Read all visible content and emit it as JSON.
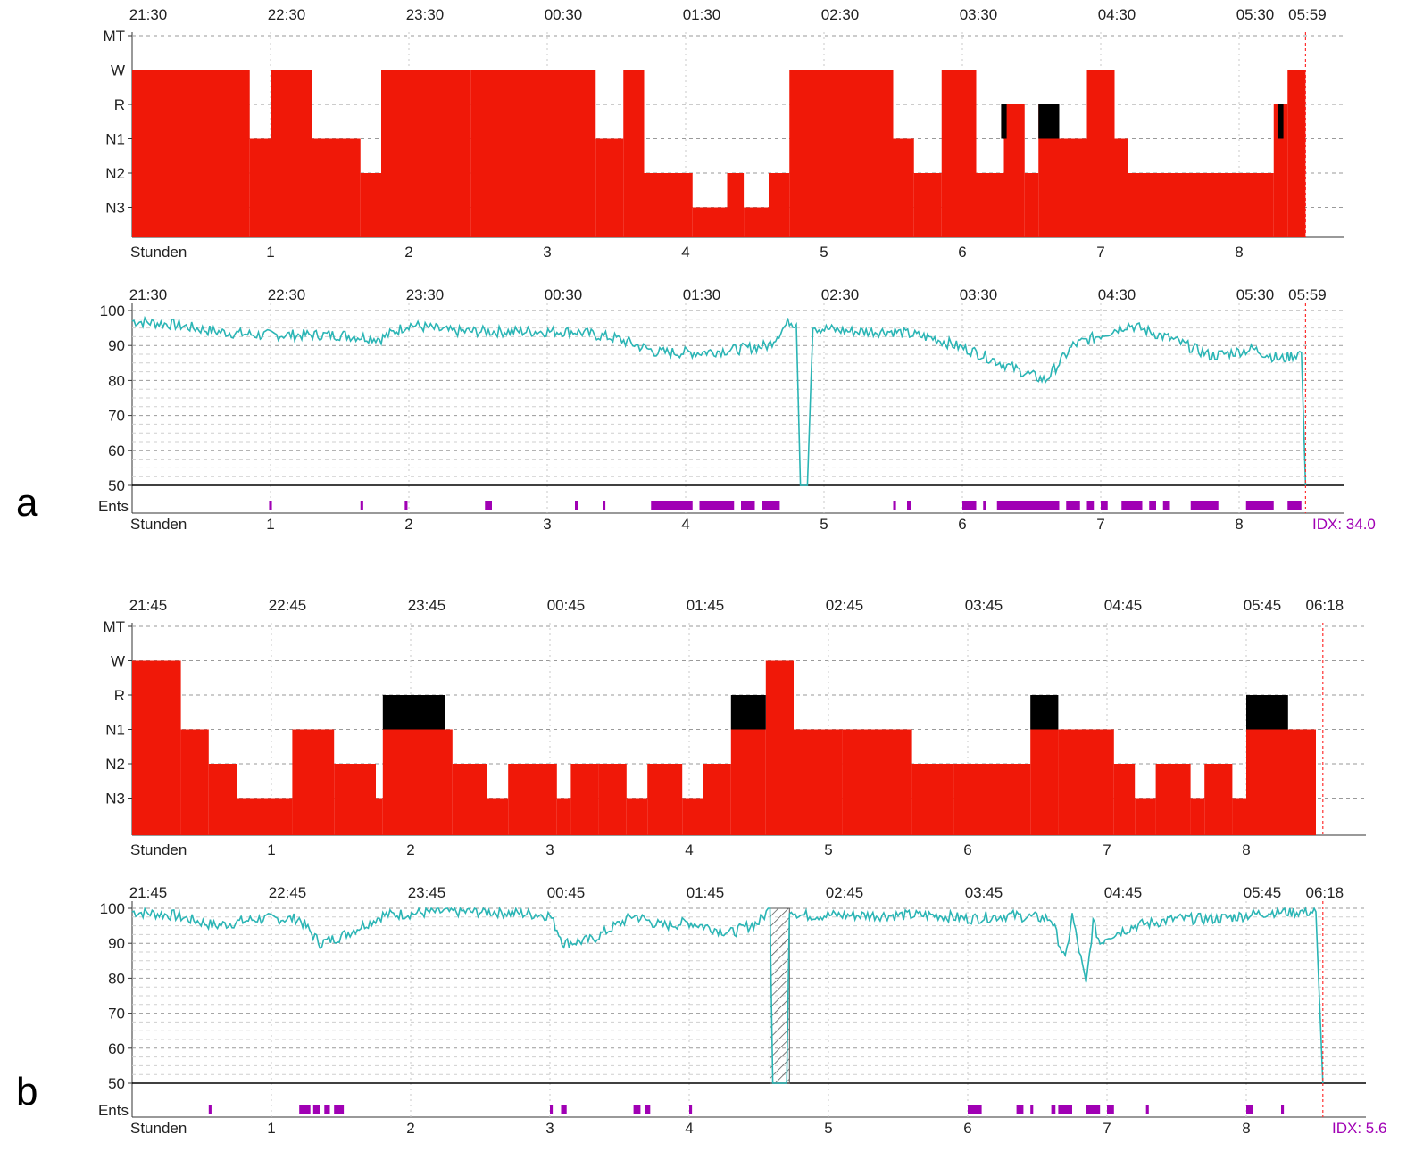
{
  "colors": {
    "hypnogram_fill": "#f01808",
    "rem_fill": "#000000",
    "spo2_line": "#2bb5b5",
    "events": "#a000b4",
    "end_marker": "#ff3030",
    "grid": "#9a9a9a",
    "idx_text": "#a000b4"
  },
  "panels": [
    {
      "label": "a",
      "times": [
        "21:30",
        "22:30",
        "23:30",
        "00:30",
        "01:30",
        "02:30",
        "03:30",
        "04:30",
        "05:30",
        "05:59"
      ],
      "hours_label": "Stunden",
      "hours": [
        "1",
        "2",
        "3",
        "4",
        "5",
        "6",
        "7",
        "8"
      ],
      "idx_label": "IDX: 34.0",
      "events_label": "Ents"
    },
    {
      "label": "b",
      "times": [
        "21:45",
        "22:45",
        "23:45",
        "00:45",
        "01:45",
        "02:45",
        "03:45",
        "04:45",
        "05:45",
        "06:18"
      ],
      "hours_label": "Stunden",
      "hours": [
        "1",
        "2",
        "3",
        "4",
        "5",
        "6",
        "7",
        "8"
      ],
      "idx_label": "IDX: 5.6",
      "events_label": "Ents"
    }
  ],
  "chart_data": [
    {
      "type": "area",
      "panel": "a",
      "kind": "hypnogram",
      "x_unit": "hours since recording start",
      "xlim": [
        0,
        8.48
      ],
      "stage_labels": [
        "MT",
        "W",
        "R",
        "N1",
        "N2",
        "N3"
      ],
      "x_ticks": [
        "1",
        "2",
        "3",
        "4",
        "5",
        "6",
        "7",
        "8"
      ],
      "x_tick_title": "Stunden",
      "top_time_ticks": [
        "21:30",
        "22:30",
        "23:30",
        "00:30",
        "01:30",
        "02:30",
        "03:30",
        "04:30",
        "05:30",
        "05:59"
      ],
      "segments": [
        [
          0,
          0.85,
          "W"
        ],
        [
          0.85,
          1.0,
          "N1"
        ],
        [
          1.0,
          1.3,
          "W"
        ],
        [
          1.3,
          1.65,
          "N1"
        ],
        [
          1.65,
          1.8,
          "N2"
        ],
        [
          1.8,
          2.45,
          "W"
        ],
        [
          2.45,
          3.35,
          "W"
        ],
        [
          3.35,
          3.55,
          "N1"
        ],
        [
          3.55,
          3.7,
          "W"
        ],
        [
          3.7,
          3.9,
          "N2"
        ],
        [
          3.9,
          4.05,
          "N2"
        ],
        [
          4.05,
          4.3,
          "N3"
        ],
        [
          4.3,
          4.42,
          "N2"
        ],
        [
          4.42,
          4.6,
          "N3"
        ],
        [
          4.6,
          4.75,
          "N2"
        ],
        [
          4.75,
          5.5,
          "W"
        ],
        [
          5.5,
          5.65,
          "N1"
        ],
        [
          5.65,
          5.85,
          "N2"
        ],
        [
          5.85,
          6.1,
          "W"
        ],
        [
          6.1,
          6.3,
          "N2"
        ],
        [
          6.3,
          6.45,
          "R"
        ],
        [
          6.45,
          6.55,
          "N2"
        ],
        [
          6.55,
          6.7,
          "R"
        ],
        [
          6.7,
          6.9,
          "N1"
        ],
        [
          6.9,
          7.1,
          "W"
        ],
        [
          7.1,
          7.2,
          "N1"
        ],
        [
          7.2,
          7.4,
          "N2"
        ],
        [
          7.4,
          8.0,
          "N2"
        ],
        [
          8.0,
          8.25,
          "N2"
        ],
        [
          8.25,
          8.35,
          "R"
        ],
        [
          8.35,
          8.48,
          "W"
        ]
      ],
      "rem_blocks": [
        [
          6.28,
          6.32
        ],
        [
          6.55,
          6.7
        ],
        [
          8.28,
          8.32
        ]
      ]
    },
    {
      "type": "line",
      "panel": "a",
      "kind": "SpO2",
      "x_unit": "hours since recording start",
      "xlim": [
        0,
        8.48
      ],
      "ylim": [
        50,
        100
      ],
      "y_ticks": [
        50,
        60,
        70,
        80,
        90,
        100
      ],
      "series": [
        {
          "x": [
            0,
            0.3,
            0.6,
            0.9,
            1.2,
            1.5,
            1.8,
            2.0,
            2.3,
            2.6,
            2.9,
            3.2,
            3.5,
            3.8,
            4.1,
            4.4,
            4.6,
            4.75,
            4.8,
            4.83,
            4.86,
            4.88,
            4.92,
            4.95,
            5.2,
            5.5,
            5.8,
            6.1,
            6.4,
            6.6,
            6.8,
            7.0,
            7.2,
            7.5,
            7.8,
            8.1,
            8.3,
            8.45,
            8.48
          ],
          "y": [
            97,
            96,
            94,
            93,
            93,
            93,
            92,
            96,
            94,
            94,
            94,
            94,
            92,
            88,
            88,
            89,
            90,
            97,
            96,
            50,
            50,
            50,
            96,
            95,
            94,
            94,
            92,
            88,
            83,
            80,
            90,
            93,
            96,
            92,
            87,
            89,
            86,
            88,
            50
          ]
        }
      ],
      "events": [
        [
          0.99,
          1.01
        ],
        [
          1.65,
          1.67
        ],
        [
          1.97,
          1.99
        ],
        [
          2.55,
          2.6
        ],
        [
          3.2,
          3.22
        ],
        [
          3.4,
          3.42
        ],
        [
          3.75,
          4.05
        ],
        [
          4.1,
          4.35
        ],
        [
          4.4,
          4.5
        ],
        [
          4.55,
          4.68
        ],
        [
          5.5,
          5.52
        ],
        [
          5.6,
          5.63
        ],
        [
          6.0,
          6.1
        ],
        [
          6.15,
          6.17
        ],
        [
          6.25,
          6.7
        ],
        [
          6.75,
          6.85
        ],
        [
          6.9,
          6.95
        ],
        [
          7.0,
          7.05
        ],
        [
          7.15,
          7.3
        ],
        [
          7.35,
          7.4
        ],
        [
          7.45,
          7.5
        ],
        [
          7.65,
          7.85
        ],
        [
          8.05,
          8.25
        ],
        [
          8.35,
          8.45
        ]
      ]
    },
    {
      "type": "area",
      "panel": "b",
      "kind": "hypnogram",
      "x_unit": "hours since recording start",
      "xlim": [
        0,
        8.55
      ],
      "stage_labels": [
        "MT",
        "W",
        "R",
        "N1",
        "N2",
        "N3"
      ],
      "x_ticks": [
        "1",
        "2",
        "3",
        "4",
        "5",
        "6",
        "7",
        "8"
      ],
      "x_tick_title": "Stunden",
      "top_time_ticks": [
        "21:45",
        "22:45",
        "23:45",
        "00:45",
        "01:45",
        "02:45",
        "03:45",
        "04:45",
        "05:45",
        "06:18"
      ],
      "segments": [
        [
          0,
          0.35,
          "W"
        ],
        [
          0.35,
          0.55,
          "N1"
        ],
        [
          0.55,
          0.75,
          "N2"
        ],
        [
          0.75,
          1.15,
          "N3"
        ],
        [
          1.15,
          1.45,
          "N1"
        ],
        [
          1.45,
          1.75,
          "N2"
        ],
        [
          1.75,
          1.8,
          "N3"
        ],
        [
          1.8,
          2.3,
          "N1"
        ],
        [
          2.3,
          2.55,
          "N2"
        ],
        [
          2.55,
          2.7,
          "N3"
        ],
        [
          2.7,
          3.05,
          "N2"
        ],
        [
          3.05,
          3.15,
          "N3"
        ],
        [
          3.15,
          3.35,
          "N2"
        ],
        [
          3.35,
          3.55,
          "N2"
        ],
        [
          3.55,
          3.7,
          "N3"
        ],
        [
          3.7,
          3.95,
          "N2"
        ],
        [
          3.95,
          4.1,
          "N3"
        ],
        [
          4.1,
          4.3,
          "N2"
        ],
        [
          4.3,
          4.55,
          "N1"
        ],
        [
          4.55,
          4.75,
          "W"
        ],
        [
          4.75,
          5.1,
          "N1"
        ],
        [
          5.1,
          5.6,
          "N1"
        ],
        [
          5.6,
          5.9,
          "N2"
        ],
        [
          5.9,
          6.25,
          "N2"
        ],
        [
          6.25,
          6.45,
          "N2"
        ],
        [
          6.45,
          6.65,
          "N1"
        ],
        [
          6.65,
          7.05,
          "N1"
        ],
        [
          7.05,
          7.2,
          "N2"
        ],
        [
          7.2,
          7.35,
          "N3"
        ],
        [
          7.35,
          7.6,
          "N2"
        ],
        [
          7.6,
          7.7,
          "N3"
        ],
        [
          7.7,
          7.9,
          "N2"
        ],
        [
          7.9,
          8.0,
          "N3"
        ],
        [
          8.0,
          8.25,
          "N1"
        ],
        [
          8.25,
          8.5,
          "N1"
        ]
      ],
      "rem_blocks": [
        [
          1.8,
          2.25
        ],
        [
          4.3,
          4.55
        ],
        [
          6.45,
          6.65
        ],
        [
          8.0,
          8.3
        ]
      ]
    },
    {
      "type": "line",
      "panel": "b",
      "kind": "SpO2",
      "x_unit": "hours since recording start",
      "xlim": [
        0,
        8.55
      ],
      "ylim": [
        50,
        100
      ],
      "y_ticks": [
        50,
        60,
        70,
        80,
        90,
        100
      ],
      "series": [
        {
          "x": [
            0,
            0.3,
            0.6,
            0.9,
            1.2,
            1.35,
            1.5,
            1.8,
            2.2,
            2.6,
            3.0,
            3.1,
            3.3,
            3.6,
            3.8,
            4.0,
            4.3,
            4.5,
            4.58,
            4.6,
            4.7,
            4.72,
            4.8,
            5.1,
            5.5,
            5.8,
            6.0,
            6.3,
            6.6,
            6.7,
            6.75,
            6.85,
            6.9,
            6.95,
            7.0,
            7.2,
            7.5,
            7.8,
            8.0,
            8.2,
            8.4,
            8.5,
            8.55
          ],
          "y": [
            99,
            98,
            95,
            97,
            97,
            90,
            92,
            98,
            99,
            99,
            98,
            90,
            91,
            98,
            95,
            96,
            93,
            96,
            100,
            50,
            50,
            100,
            98,
            98,
            98,
            98,
            97,
            98,
            97,
            85,
            98,
            78,
            96,
            90,
            92,
            95,
            97,
            97,
            98,
            99,
            99,
            99,
            50
          ]
        }
      ],
      "artifact_band": [
        4.58,
        4.72
      ],
      "events": [
        [
          0.55,
          0.57
        ],
        [
          1.2,
          1.28
        ],
        [
          1.3,
          1.35
        ],
        [
          1.38,
          1.42
        ],
        [
          1.45,
          1.52
        ],
        [
          3.0,
          3.02
        ],
        [
          3.08,
          3.12
        ],
        [
          3.6,
          3.65
        ],
        [
          3.68,
          3.72
        ],
        [
          4.0,
          4.02
        ],
        [
          6.0,
          6.1
        ],
        [
          6.35,
          6.4
        ],
        [
          6.45,
          6.47
        ],
        [
          6.6,
          6.63
        ],
        [
          6.65,
          6.75
        ],
        [
          6.85,
          6.95
        ],
        [
          7.0,
          7.05
        ],
        [
          7.28,
          7.3
        ],
        [
          8.0,
          8.05
        ],
        [
          8.25,
          8.27
        ]
      ]
    }
  ]
}
